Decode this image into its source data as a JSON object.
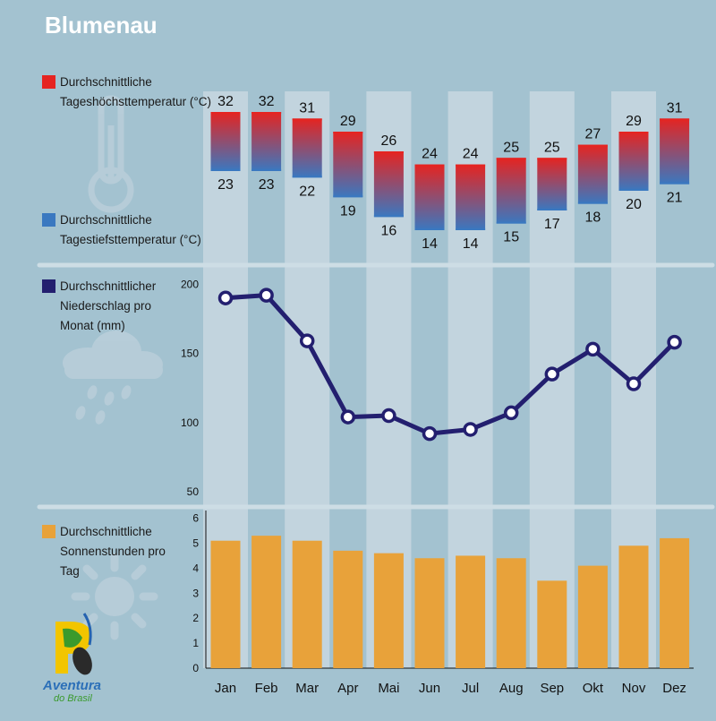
{
  "page": {
    "title": "Blumenau",
    "brand_line1": "Aventura",
    "brand_line2": "do Brasil"
  },
  "colors": {
    "background": "#a3c2d0",
    "band": "#c2d4de",
    "divider": "#cddde5",
    "high_temp": "#e52421",
    "low_temp": "#3a78c0",
    "precipitation": "#231f6f",
    "sunshine": "#e8a23a",
    "icon": "#b9ced9"
  },
  "icons": [
    "thermometer-icon",
    "rain-cloud-icon",
    "sun-icon"
  ],
  "chart_data": [
    {
      "type": "bar",
      "name": "temperature",
      "categories": [
        "Jan",
        "Feb",
        "Mar",
        "Apr",
        "Mai",
        "Jun",
        "Jul",
        "Aug",
        "Sep",
        "Okt",
        "Nov",
        "Dez"
      ],
      "legend": [
        "Durchschnittliche Tageshöchsttemperatur (°C)",
        "Durchschnittliche Tagestiefsttemperatur (°C)"
      ],
      "series": [
        {
          "name": "Durchschnittliche Tageshöchsttemperatur (°C)",
          "values": [
            32,
            32,
            31,
            29,
            26,
            24,
            24,
            25,
            25,
            27,
            29,
            31
          ]
        },
        {
          "name": "Durchschnittliche Tagestiefsttemperatur (°C)",
          "values": [
            23,
            23,
            22,
            19,
            16,
            14,
            14,
            15,
            17,
            18,
            20,
            21
          ]
        }
      ]
    },
    {
      "type": "line",
      "name": "precipitation",
      "categories": [
        "Jan",
        "Feb",
        "Mar",
        "Apr",
        "Mai",
        "Jun",
        "Jul",
        "Aug",
        "Sep",
        "Okt",
        "Nov",
        "Dez"
      ],
      "legend": "Durchschnittlicher Niederschlag pro Monat (mm)",
      "series": [
        {
          "name": "Durchschnittlicher Niederschlag pro Monat (mm)",
          "values": [
            190,
            192,
            159,
            104,
            105,
            92,
            95,
            107,
            135,
            153,
            128,
            158
          ]
        }
      ],
      "yticks": [
        50,
        100,
        150,
        200
      ],
      "ylim": [
        45,
        210
      ]
    },
    {
      "type": "bar",
      "name": "sunshine",
      "categories": [
        "Jan",
        "Feb",
        "Mar",
        "Apr",
        "Mai",
        "Jun",
        "Jul",
        "Aug",
        "Sep",
        "Okt",
        "Nov",
        "Dez"
      ],
      "legend": "Durchschnittliche Sonnenstunden pro Tag",
      "series": [
        {
          "name": "Durchschnittliche Sonnenstunden pro Tag",
          "values": [
            5.1,
            5.3,
            5.1,
            4.7,
            4.6,
            4.4,
            4.5,
            4.4,
            3.5,
            4.1,
            4.9,
            5.2
          ]
        }
      ],
      "yticks": [
        0,
        1,
        2,
        3,
        4,
        5,
        6
      ],
      "ylim": [
        0,
        6
      ]
    }
  ]
}
